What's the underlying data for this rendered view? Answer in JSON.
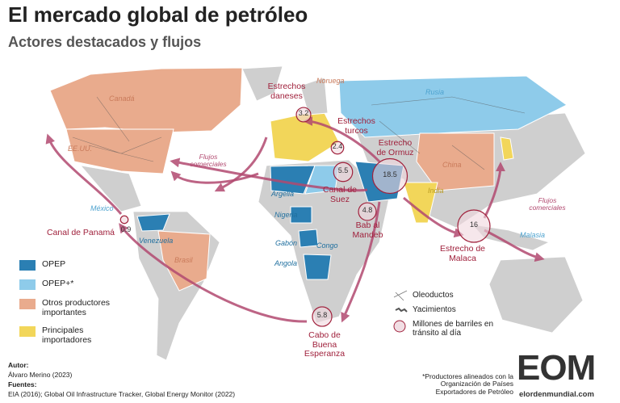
{
  "header": {
    "title": "El mercado global de petróleo",
    "subtitle": "Actores destacados y flujos"
  },
  "countries": [
    {
      "label": "Canadá",
      "group": 2
    },
    {
      "label": "EE.UU.",
      "group": 2
    },
    {
      "label": "México",
      "group": 1
    },
    {
      "label": "Venezuela",
      "group": 0
    },
    {
      "label": "Brasil",
      "group": 2
    },
    {
      "label": "Noruega",
      "group": 2
    },
    {
      "label": "Rusia",
      "group": 1
    },
    {
      "label": "China",
      "group": 2
    },
    {
      "label": "India",
      "group": 3
    },
    {
      "label": "Malasia",
      "group": 1
    },
    {
      "label": "Argelia",
      "group": 0
    },
    {
      "label": "Nigeria",
      "group": 0
    },
    {
      "label": "Gabón",
      "group": 0
    },
    {
      "label": "Congo",
      "group": 0
    },
    {
      "label": "Angola",
      "group": 0
    }
  ],
  "chokepoints": [
    {
      "label": "Estrechos daneses",
      "value": 3.2
    },
    {
      "label": "Estrechos turcos",
      "value": 2.4
    },
    {
      "label": "Canal de Suez",
      "value": 5.5
    },
    {
      "label": "Estrecho de Ormuz",
      "value": 18.5
    },
    {
      "label": "Bab al Mandeb",
      "value": 4.8
    },
    {
      "label": "Estrecho de Malaca",
      "value": 16
    },
    {
      "label": "Canal de Panamá",
      "value": 0.9
    },
    {
      "label": "Cabo de Buena Esperanza",
      "value": 5.8
    }
  ],
  "flows": [
    "Flujos comerciales",
    "Flujos comerciales"
  ],
  "legend": [
    {
      "label": "OPEP",
      "color": "#2b7fb3"
    },
    {
      "label": "OPEP+*",
      "color": "#8ecbea"
    },
    {
      "label": "Otros productores importantes",
      "color": "#e9ab8d"
    },
    {
      "label": "Principales importadores",
      "color": "#f2d65a"
    }
  ],
  "legend_symbols": [
    "Oleoductos",
    "Yacimientos",
    "Millones de barriles en tránsito al día"
  ],
  "credits": {
    "author_heading": "Autor:",
    "author": "Álvaro Merino (2023)",
    "sources_heading": "Fuentes:",
    "sources": "EIA (2016); Global Oil Infrastructure Tracker, Global Energy Monitor (2022)"
  },
  "footnote": "*Productores alineados con la Organización de Países Exportadores de Petróleo",
  "logo": {
    "mark": "EOM",
    "site": "elordenmundial.com"
  }
}
